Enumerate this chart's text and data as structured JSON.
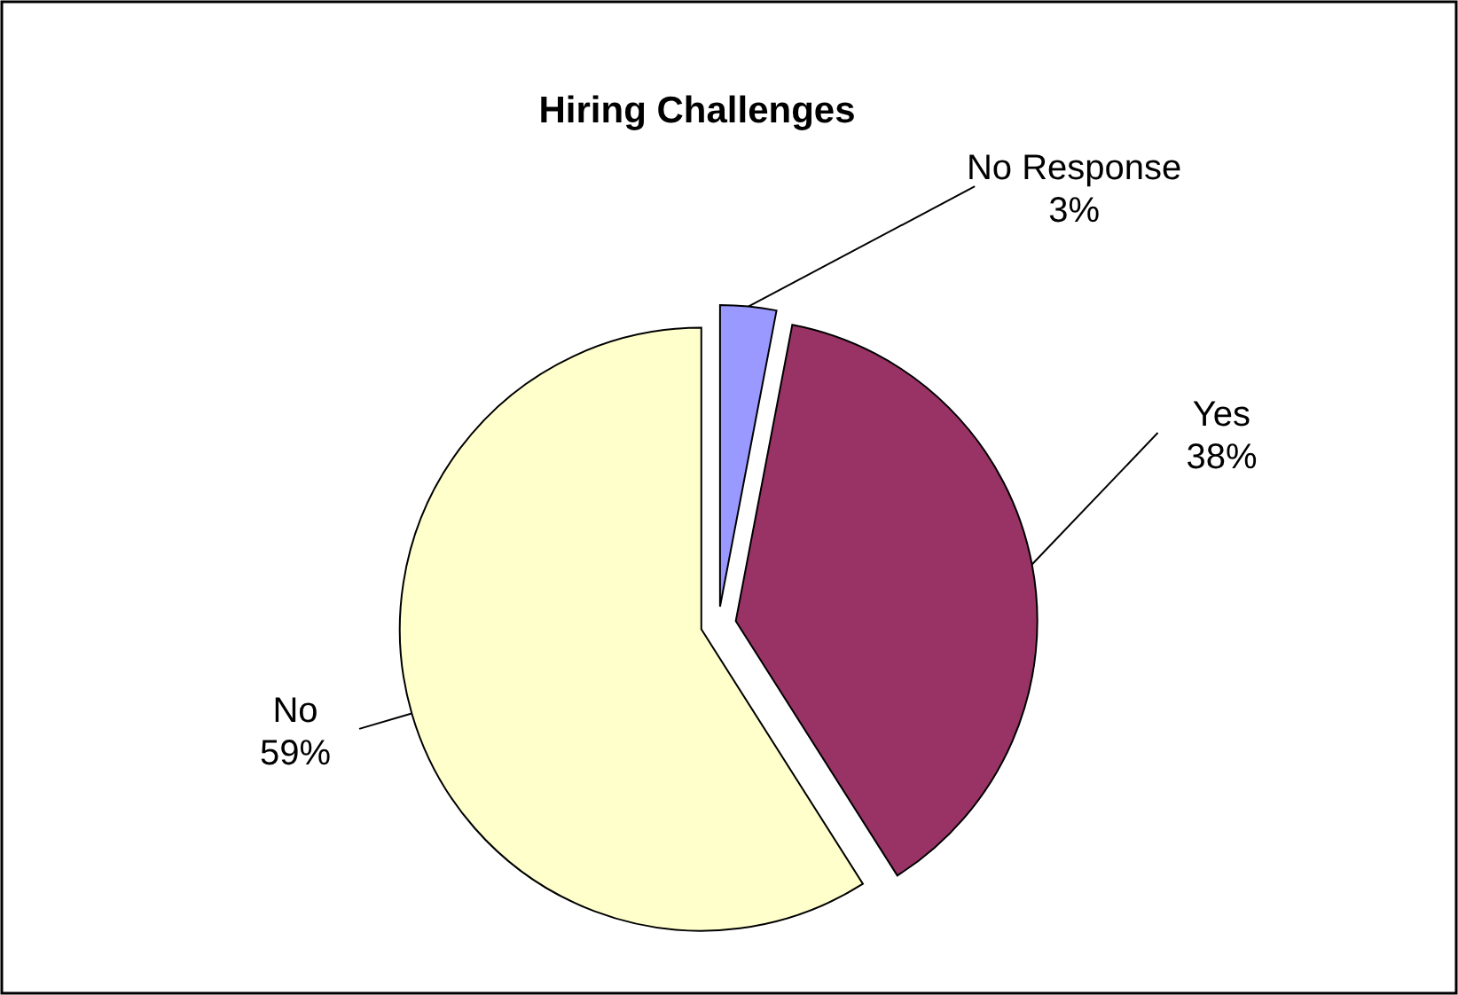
{
  "chart_data": {
    "type": "pie",
    "title": "Hiring Challenges",
    "categories": [
      "No Response",
      "Yes",
      "No"
    ],
    "values": [
      3,
      38,
      59
    ],
    "value_labels": [
      "3%",
      "38%",
      "59%"
    ],
    "colors": [
      "#9999ff",
      "#993366",
      "#ffffcc"
    ]
  }
}
